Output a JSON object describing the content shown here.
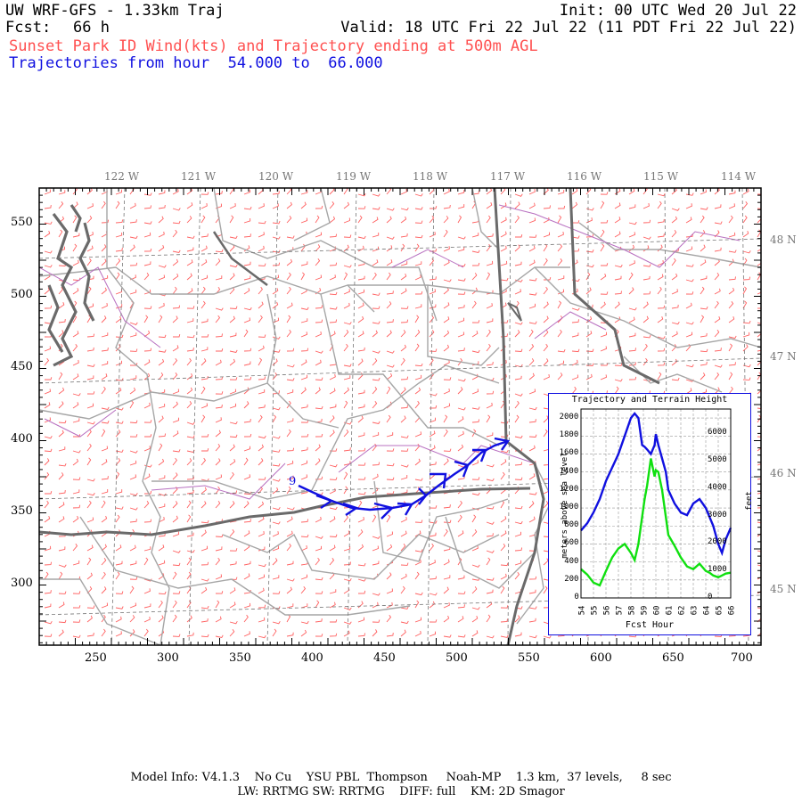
{
  "header": {
    "title_left": "UW WRF-GFS - 1.33km Traj",
    "init": "Init: 00 UTC Wed 20 Jul 22",
    "fcst_label": "Fcst:",
    "fcst_value": "66 h",
    "valid": "Valid: 18 UTC Fri 22 Jul 22 (11 PDT Fri 22 Jul 22)",
    "subtitle_red": "Sunset Park ID Wind(kts) and Trajectory ending at 500m AGL",
    "subtitle_blue": "Trajectories from hour  54.000 to  66.000"
  },
  "map": {
    "lon_labels": [
      "122 W",
      "121 W",
      "120 W",
      "119 W",
      "118 W",
      "117 W",
      "116 W",
      "115 W",
      "114 W"
    ],
    "lat_labels": [
      "48 N",
      "47 N",
      "46 N",
      "45 N"
    ],
    "x_ticks": [
      "250",
      "300",
      "350",
      "400",
      "450",
      "500",
      "550",
      "600",
      "650",
      "700"
    ],
    "y_ticks": [
      "550",
      "500",
      "450",
      "400",
      "350",
      "300"
    ],
    "trajectory_start_label": "9",
    "colors": {
      "wind": "#ff6060",
      "state_border": "#606060",
      "county": "#a0a0a0",
      "lakes": "#b060b0",
      "trajectory": "#1010e0"
    }
  },
  "inset": {
    "title": "Trajectory and Terrain Height",
    "ylabel_left": "meters above sea level",
    "ylabel_right": "feet",
    "xlabel": "Fcst Hour",
    "left_ticks": [
      "2000",
      "1800",
      "1600",
      "1400",
      "1200",
      "1000",
      "800",
      "600",
      "400",
      "200",
      "0"
    ],
    "right_ticks": [
      "6000",
      "5000",
      "4000",
      "3000",
      "2000",
      "1000",
      "0"
    ],
    "x_ticks": [
      "54",
      "55",
      "56",
      "57",
      "58",
      "59",
      "60",
      "61",
      "62",
      "63",
      "64",
      "65",
      "66"
    ],
    "chart_data": {
      "type": "line",
      "x": [
        54,
        54.5,
        55,
        55.5,
        56,
        56.5,
        57,
        57.5,
        58,
        58.3,
        58.6,
        58.9,
        59.1,
        59.3,
        59.6,
        59.9,
        60.0,
        60.2,
        60.5,
        60.8,
        61,
        61.5,
        62,
        62.5,
        63,
        63.5,
        64,
        64.3,
        64.6,
        65,
        65.3,
        65.6,
        66
      ],
      "series": [
        {
          "color": "#1010e0",
          "values": [
            750,
            830,
            950,
            1100,
            1300,
            1450,
            1600,
            1800,
            2000,
            2050,
            2000,
            1700,
            1680,
            1650,
            1600,
            1700,
            1820,
            1700,
            1550,
            1400,
            1200,
            1050,
            950,
            920,
            1050,
            1100,
            1000,
            900,
            800,
            600,
            500,
            650,
            780
          ]
        },
        {
          "color": "#10e010",
          "values": [
            320,
            260,
            170,
            140,
            300,
            450,
            550,
            600,
            500,
            420,
            600,
            900,
            1100,
            1250,
            1550,
            1350,
            1420,
            1400,
            1200,
            900,
            700,
            580,
            450,
            350,
            320,
            380,
            300,
            280,
            250,
            230,
            250,
            270,
            280
          ]
        }
      ],
      "ylim": [
        0,
        2100
      ],
      "xlim": [
        54,
        66
      ]
    }
  },
  "footer": {
    "line1": "Model Info: V4.1.3    No Cu    YSU PBL  Thompson     Noah-MP    1.3 km,  37 levels,     8 sec",
    "line2": "LW: RRTMG SW: RRTMG    DIFF: full    KM: 2D Smagor"
  }
}
